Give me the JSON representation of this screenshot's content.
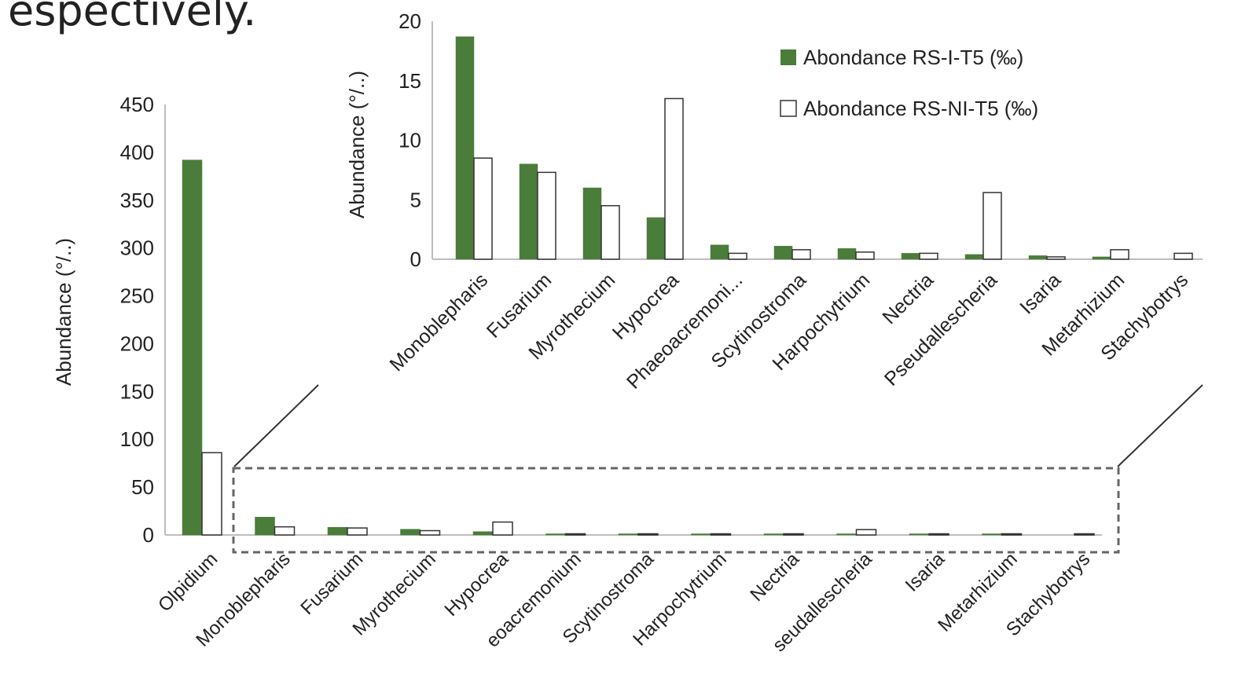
{
  "caption_fragment": "espectively.",
  "colors": {
    "series_1": "#4a7c3a",
    "series_2": "#ffffff",
    "bar_stroke": "#333333",
    "axis": "#bdbdbd",
    "text": "#222222"
  },
  "chart_data": [
    {
      "id": "main",
      "type": "bar",
      "ylabel": "Abundance (°/..)",
      "ylim": [
        0,
        450
      ],
      "yticks": [
        0,
        50,
        100,
        150,
        200,
        250,
        300,
        350,
        400,
        450
      ],
      "categories": [
        "Olpidium",
        "Monoblepharis",
        "Fusarium",
        "Myrothecium",
        "Hypocrea",
        "Phaeoacremonium",
        "Scytinostroma",
        "Harpochytrium",
        "Nectria",
        "Pseudallescheria",
        "Isaria",
        "Metarhizium",
        "Stachybotrys"
      ],
      "visible_tick_labels": [
        "Olpidium",
        "Monoblepharis",
        "Fusarium",
        "Myrothecium",
        "Hypocrea",
        "eoacremonium",
        "Scytinostroma",
        "Harpochytrium",
        "Nectria",
        "seudallescheria",
        "Isaria",
        "Metarhizium",
        "Stachybotrys"
      ],
      "series": [
        {
          "name": "Abondance RS-I-T5 (‰)",
          "values": [
            392,
            18.7,
            8.0,
            6.0,
            3.5,
            1.2,
            1.1,
            0.9,
            0.5,
            0.4,
            0.3,
            0.2,
            0.0
          ]
        },
        {
          "name": "Abondance RS-NI-T5 (‰)",
          "values": [
            86,
            8.5,
            7.3,
            4.5,
            13.5,
            0.5,
            0.8,
            0.6,
            0.5,
            5.6,
            0.2,
            0.8,
            0.5
          ]
        }
      ],
      "grid": false
    },
    {
      "id": "inset",
      "type": "bar",
      "ylabel": "Abundance (°/..)",
      "ylim": [
        0,
        20
      ],
      "yticks": [
        0,
        5,
        10,
        15,
        20
      ],
      "categories": [
        "Monoblepharis",
        "Fusarium",
        "Myrothecium",
        "Hypocrea",
        "Phaeoacremoni...",
        "Scytinostroma",
        "Harpochytrium",
        "Nectria",
        "Pseudallescheria",
        "Isaria",
        "Metarhizium",
        "Stachybotrys"
      ],
      "series": [
        {
          "name": "Abondance RS-I-T5 (‰)",
          "values": [
            18.7,
            8.0,
            6.0,
            3.5,
            1.2,
            1.1,
            0.9,
            0.5,
            0.4,
            0.3,
            0.2,
            0.0
          ]
        },
        {
          "name": "Abondance RS-NI-T5 (‰)",
          "values": [
            8.5,
            7.3,
            4.5,
            13.5,
            0.5,
            0.8,
            0.6,
            0.5,
            5.6,
            0.2,
            0.8,
            0.5
          ]
        }
      ],
      "legend": {
        "position": "top-right",
        "entries": [
          "Abondance RS-I-T5 (‰)",
          "Abondance RS-NI-T5 (‰)"
        ]
      },
      "grid": false
    }
  ]
}
